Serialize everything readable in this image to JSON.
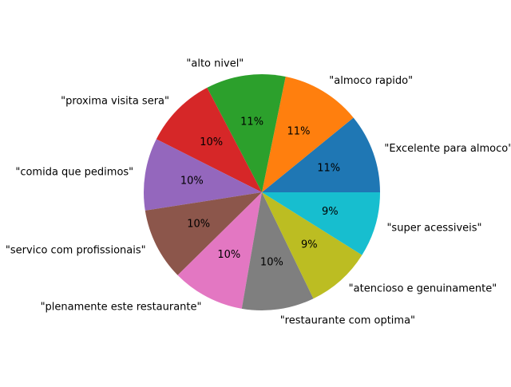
{
  "chart_data": {
    "type": "pie",
    "title": "",
    "start_angle_deg": 0,
    "direction": "counterclockwise",
    "slices": [
      {
        "label": "\"Excelente para almoco\"",
        "value": 11,
        "pct_label": "11%",
        "color": "#1f77b4"
      },
      {
        "label": "\"almoco rapido\"",
        "value": 11,
        "pct_label": "11%",
        "color": "#ff7f0e"
      },
      {
        "label": "\"alto nivel\"",
        "value": 11,
        "pct_label": "11%",
        "color": "#2ca02c"
      },
      {
        "label": "\"proxima visita sera\"",
        "value": 10,
        "pct_label": "10%",
        "color": "#d62728"
      },
      {
        "label": "\"comida que pedimos\"",
        "value": 10,
        "pct_label": "10%",
        "color": "#9467bd"
      },
      {
        "label": "\"servico com profissionais\"",
        "value": 10,
        "pct_label": "10%",
        "color": "#8c564b"
      },
      {
        "label": "\"plenamente este restaurante\"",
        "value": 10,
        "pct_label": "10%",
        "color": "#e377c2"
      },
      {
        "label": "\"restaurante com optima\"",
        "value": 10,
        "pct_label": "10%",
        "color": "#7f7f7f"
      },
      {
        "label": "\"atencioso e genuinamente\"",
        "value": 9,
        "pct_label": "9%",
        "color": "#bcbd22"
      },
      {
        "label": "\"super acessiveis\"",
        "value": 9,
        "pct_label": "9%",
        "color": "#17becf"
      }
    ]
  }
}
